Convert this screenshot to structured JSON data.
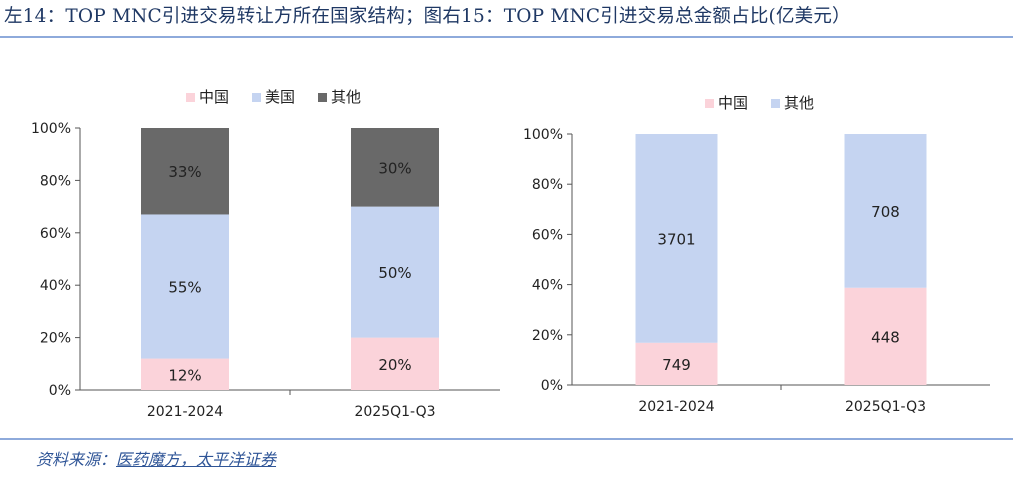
{
  "header": {
    "title": "左14：TOP MNC引进交易转让方所在国家结构；图右15：TOP MNC引进交易总金额占比(亿美元）"
  },
  "footer": {
    "source_label": "资料来源：",
    "source_text": "医药魔方，太平洋证券"
  },
  "colors": {
    "china": "#fbd3da",
    "usa": "#c5d4f1",
    "other": "#696969",
    "accent": "#8eaadb",
    "title": "#1f3864"
  },
  "chart_data": [
    {
      "type": "bar",
      "stacked": true,
      "categories": [
        "2021-2024",
        "2025Q1-Q3"
      ],
      "series": [
        {
          "name": "中国",
          "values": [
            12,
            20
          ],
          "labels": [
            "12%",
            "20%"
          ],
          "color": "#fbd3da"
        },
        {
          "name": "美国",
          "values": [
            55,
            50
          ],
          "labels": [
            "55%",
            "50%"
          ],
          "color": "#c5d4f1"
        },
        {
          "name": "其他",
          "values": [
            33,
            30
          ],
          "labels": [
            "33%",
            "30%"
          ],
          "color": "#696969"
        }
      ],
      "ylim": [
        0,
        100
      ],
      "yticks": [
        "0%",
        "20%",
        "40%",
        "60%",
        "80%",
        "100%"
      ],
      "legend_position": "top",
      "grid": false
    },
    {
      "type": "bar",
      "stacked": true,
      "normalized": true,
      "categories": [
        "2021-2024",
        "2025Q1-Q3"
      ],
      "series": [
        {
          "name": "中国",
          "values": [
            749,
            448
          ],
          "labels": [
            "749",
            "448"
          ],
          "color": "#fbd3da"
        },
        {
          "name": "其他",
          "values": [
            3701,
            708
          ],
          "labels": [
            "3701",
            "708"
          ],
          "color": "#c5d4f1"
        }
      ],
      "ylim": [
        0,
        100
      ],
      "yticks": [
        "0%",
        "20%",
        "40%",
        "60%",
        "80%",
        "100%"
      ],
      "legend_position": "top",
      "grid": false
    }
  ]
}
